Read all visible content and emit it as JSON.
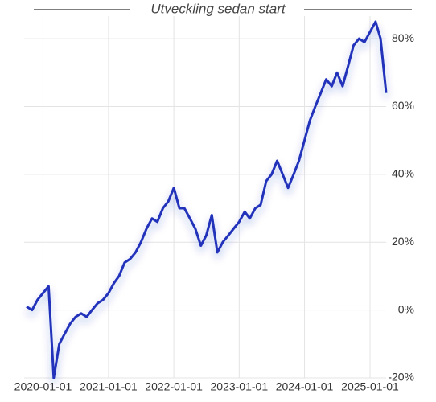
{
  "chart_data": {
    "type": "line",
    "title": "Utveckling sedan start",
    "x": [
      "2019-10-01",
      "2019-11-01",
      "2019-12-01",
      "2020-01-01",
      "2020-02-01",
      "2020-03-01",
      "2020-04-01",
      "2020-05-01",
      "2020-06-01",
      "2020-07-01",
      "2020-08-01",
      "2020-09-01",
      "2020-10-01",
      "2020-11-01",
      "2020-12-01",
      "2021-01-01",
      "2021-02-01",
      "2021-03-01",
      "2021-04-01",
      "2021-05-01",
      "2021-06-01",
      "2021-07-01",
      "2021-08-01",
      "2021-09-01",
      "2021-10-01",
      "2021-11-01",
      "2021-12-01",
      "2022-01-01",
      "2022-02-01",
      "2022-03-01",
      "2022-04-01",
      "2022-05-01",
      "2022-06-01",
      "2022-07-01",
      "2022-08-01",
      "2022-09-01",
      "2022-10-01",
      "2022-11-01",
      "2022-12-01",
      "2023-01-01",
      "2023-02-01",
      "2023-03-01",
      "2023-04-01",
      "2023-05-01",
      "2023-06-01",
      "2023-07-01",
      "2023-08-01",
      "2023-09-01",
      "2023-10-01",
      "2023-11-01",
      "2023-12-01",
      "2024-01-01",
      "2024-02-01",
      "2024-03-01",
      "2024-04-01",
      "2024-05-01",
      "2024-06-01",
      "2024-07-01",
      "2024-08-01",
      "2024-09-01",
      "2024-10-01",
      "2024-11-01",
      "2024-12-01",
      "2025-01-01",
      "2025-02-01",
      "2025-03-01",
      "2025-04-01"
    ],
    "series": [
      {
        "color": "#2233bb",
        "values": [
          1,
          0,
          3,
          5,
          7,
          -20,
          -10,
          -7,
          -4,
          -2,
          -1,
          -2,
          0,
          2,
          3,
          5,
          8,
          10,
          14,
          15,
          17,
          20,
          24,
          27,
          26,
          30,
          32,
          36,
          30,
          30,
          27,
          24,
          19,
          22,
          28,
          17,
          20,
          22,
          24,
          26,
          29,
          27,
          30,
          31,
          38,
          40,
          44,
          40,
          36,
          40,
          44,
          50,
          56,
          60,
          64,
          68,
          66,
          70,
          66,
          72,
          78,
          80,
          79,
          82,
          85,
          80,
          64
        ]
      }
    ],
    "xlim": [
      "2019-10-01",
      "2025-04-10"
    ],
    "xticks": [
      "2020-01-01",
      "2021-01-01",
      "2022-01-01",
      "2023-01-01",
      "2024-01-01",
      "2025-01-01"
    ],
    "ylim": [
      -20,
      85
    ],
    "yticks": [
      {
        "value": -20,
        "label": "-20%"
      },
      {
        "value": 0,
        "label": "0%"
      },
      {
        "value": 20,
        "label": "20%"
      },
      {
        "value": 40,
        "label": "40%"
      },
      {
        "value": 60,
        "label": "60%"
      },
      {
        "value": 80,
        "label": "80%"
      }
    ],
    "grid": true
  }
}
